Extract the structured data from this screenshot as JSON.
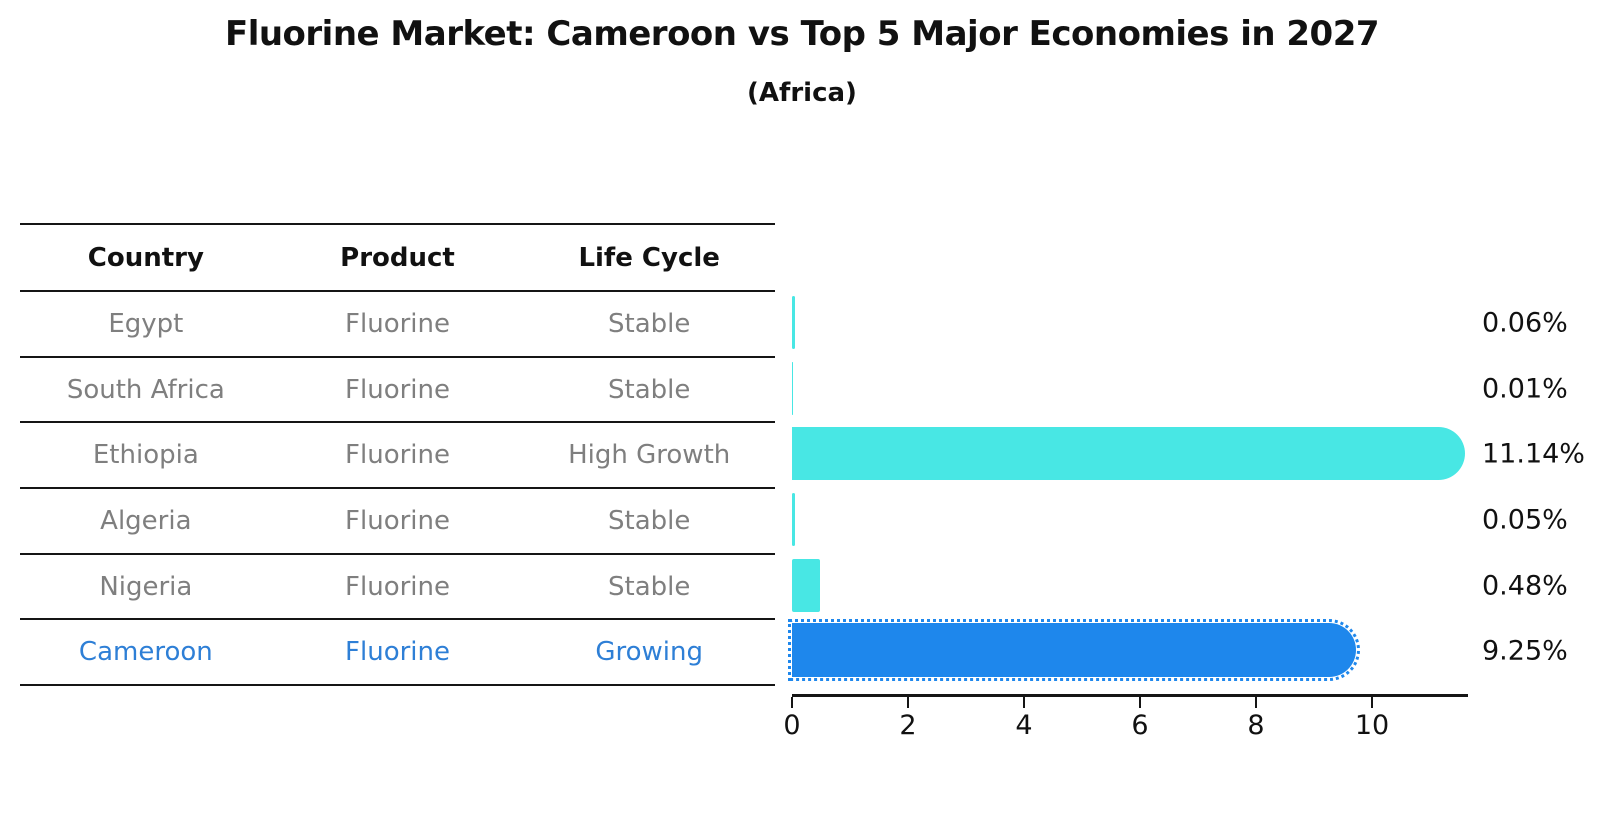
{
  "title": "Fluorine Market: Cameroon vs Top 5 Major Economies in 2027",
  "subtitle": "(Africa)",
  "table": {
    "headers": [
      "Country",
      "Product",
      "Life Cycle"
    ]
  },
  "rows": [
    {
      "country": "Egypt",
      "product": "Fluorine",
      "life_cycle": "Stable",
      "value": 0.06,
      "pct": "0.06%",
      "highlight": false
    },
    {
      "country": "South Africa",
      "product": "Fluorine",
      "life_cycle": "Stable",
      "value": 0.01,
      "pct": "0.01%",
      "highlight": false
    },
    {
      "country": "Ethiopia",
      "product": "Fluorine",
      "life_cycle": "High Growth",
      "value": 11.14,
      "pct": "11.14%",
      "highlight": false
    },
    {
      "country": "Algeria",
      "product": "Fluorine",
      "life_cycle": "Stable",
      "value": 0.05,
      "pct": "0.05%",
      "highlight": false
    },
    {
      "country": "Nigeria",
      "product": "Fluorine",
      "life_cycle": "Stable",
      "value": 0.48,
      "pct": "0.48%",
      "highlight": false
    },
    {
      "country": "Cameroon",
      "product": "Fluorine",
      "life_cycle": "Growing",
      "value": 9.25,
      "pct": "9.25%",
      "highlight": true
    }
  ],
  "chart_data": {
    "type": "bar",
    "orientation": "horizontal",
    "title": "Fluorine Market: Cameroon vs Top 5 Major Economies in 2027",
    "subtitle": "(Africa)",
    "categories": [
      "Egypt",
      "South Africa",
      "Ethiopia",
      "Algeria",
      "Nigeria",
      "Cameroon"
    ],
    "values": [
      0.06,
      0.01,
      11.14,
      0.05,
      0.48,
      9.25
    ],
    "value_labels": [
      "0.06%",
      "0.01%",
      "11.14%",
      "0.05%",
      "0.48%",
      "9.25%"
    ],
    "xticks": [
      0,
      2,
      4,
      6,
      8,
      10
    ],
    "xlim": [
      0,
      11.66
    ],
    "highlight_index": 5,
    "grid": false,
    "legend": false
  },
  "colors": {
    "bar_cyan": "#48E7E4",
    "bar_blue": "#1E87EC",
    "row_text_gray": "#7F7F7F",
    "highlight_text_blue": "#2E7FD6",
    "axis_black": "#151515"
  }
}
